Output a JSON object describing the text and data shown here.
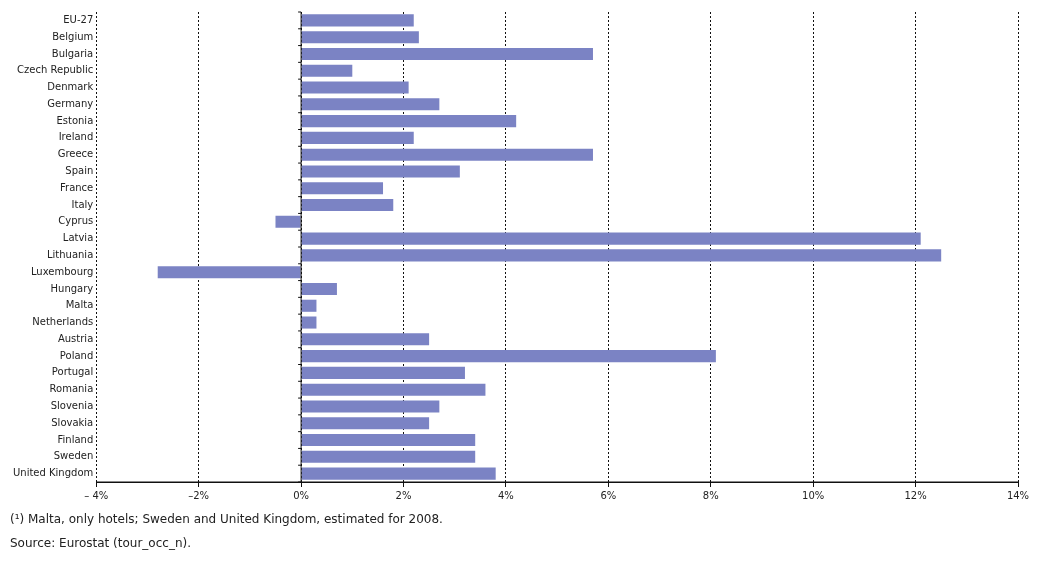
{
  "chart_data": {
    "type": "bar",
    "orientation": "horizontal",
    "categories": [
      "EU-27",
      "Belgium",
      "Bulgaria",
      "Czech Republic",
      "Denmark",
      "Germany",
      "Estonia",
      "Ireland",
      "Greece",
      "Spain",
      "France",
      "Italy",
      "Cyprus",
      "Latvia",
      "Lithuania",
      "Luxembourg",
      "Hungary",
      "Malta",
      "Netherlands",
      "Austria",
      "Poland",
      "Portugal",
      "Romania",
      "Slovenia",
      "Slovakia",
      "Finland",
      "Sweden",
      "United Kingdom"
    ],
    "values": [
      2.2,
      2.3,
      5.7,
      1.0,
      2.1,
      2.7,
      4.2,
      2.2,
      5.7,
      3.1,
      1.6,
      1.8,
      -0.5,
      12.1,
      12.5,
      -2.8,
      0.7,
      0.3,
      0.3,
      2.5,
      8.1,
      3.2,
      3.6,
      2.7,
      2.5,
      3.4,
      3.4,
      3.8
    ],
    "color": "#7b83c4",
    "xlim": [
      -4,
      14
    ],
    "xticks": [
      {
        "value": -4,
        "label": "– 4%"
      },
      {
        "value": -2,
        "label": "–2%"
      },
      {
        "value": 0,
        "label": "0%"
      },
      {
        "value": 2,
        "label": "2%"
      },
      {
        "value": 4,
        "label": "4%"
      },
      {
        "value": 6,
        "label": "6%"
      },
      {
        "value": 8,
        "label": "8%"
      },
      {
        "value": 10,
        "label": "10%"
      },
      {
        "value": 12,
        "label": "12%"
      },
      {
        "value": 14,
        "label": "14%"
      }
    ],
    "grid": "x",
    "legend": false,
    "annotations": [
      "(¹) Malta, only hotels; Sweden and United Kingdom, estimated for 2008.",
      "Source: Eurostat (tour_occ_n)."
    ]
  }
}
